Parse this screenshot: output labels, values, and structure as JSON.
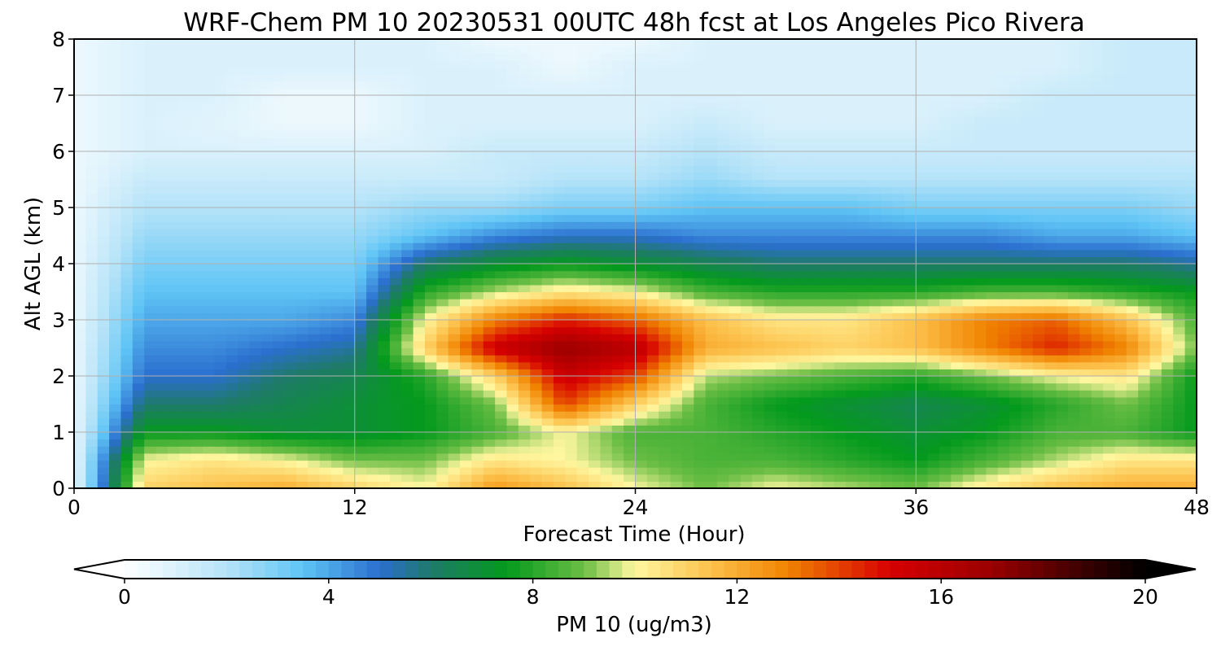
{
  "chart_data": {
    "type": "heatmap",
    "title": "WRF-Chem PM 10  20230531 00UTC 48h fcst at Los Angeles Pico Rivera",
    "xlabel": "Forecast Time (Hour)",
    "ylabel": "Alt AGL (km)",
    "xlim": [
      0,
      48
    ],
    "ylim": [
      0,
      8
    ],
    "xticks": [
      0,
      12,
      24,
      36,
      48
    ],
    "yticks": [
      0,
      1,
      2,
      3,
      4,
      5,
      6,
      7,
      8
    ],
    "grid": true,
    "hours": [
      0,
      3,
      6,
      9,
      12,
      15,
      18,
      21,
      24,
      27,
      30,
      33,
      36,
      39,
      42,
      45,
      48
    ],
    "altitudes_km": [
      0,
      0.5,
      1,
      1.5,
      2,
      2.5,
      3,
      3.5,
      4,
      4.5,
      5,
      5.5,
      6,
      6.5,
      7,
      7.5,
      8
    ],
    "pm10_values": [
      [
        0.5,
        11,
        11.5,
        12,
        11,
        10,
        12.5,
        11.5,
        10,
        9,
        10,
        9.5,
        9,
        10.5,
        11.5,
        12,
        12
      ],
      [
        0.5,
        10,
        10.5,
        10,
        9,
        9,
        10.5,
        10,
        9,
        8.5,
        8.5,
        8,
        7.5,
        8.5,
        9.5,
        10.5,
        10.5
      ],
      [
        0.5,
        7.5,
        7.5,
        7,
        7,
        7.5,
        8.5,
        10,
        8.5,
        8.5,
        8,
        7.5,
        7,
        7.5,
        8.5,
        8.5,
        7.5
      ],
      [
        0.5,
        6,
        6,
        6.5,
        7,
        7.5,
        9,
        14,
        11,
        8.5,
        7.5,
        7,
        6.5,
        7,
        8,
        9,
        7.5
      ],
      [
        0.5,
        5,
        5,
        6,
        6.5,
        8,
        11,
        15.5,
        14,
        9.5,
        9,
        8.5,
        8,
        9,
        10,
        10.5,
        7.5
      ],
      [
        0.5,
        4.5,
        4.5,
        5,
        5.5,
        11,
        15.5,
        17,
        16,
        12,
        11.5,
        11,
        11.5,
        13,
        14.5,
        13,
        9
      ],
      [
        0.5,
        4,
        4,
        4,
        4.5,
        10,
        13,
        14.5,
        13.5,
        11.5,
        10.5,
        10.5,
        11.5,
        13,
        13.5,
        11.5,
        8.5
      ],
      [
        0.5,
        3.5,
        3.5,
        3.5,
        3.5,
        8,
        9.5,
        10.5,
        10,
        8.5,
        8,
        8,
        8,
        8.5,
        8.5,
        8,
        7.5
      ],
      [
        0.5,
        3,
        3,
        3,
        3,
        6,
        7,
        7.5,
        7,
        6.5,
        6,
        6,
        6,
        6,
        6,
        6,
        5.5
      ],
      [
        0.5,
        2.5,
        2.5,
        2.5,
        2.5,
        3.5,
        4.5,
        5,
        5,
        4.5,
        4.5,
        4.5,
        4.5,
        4.5,
        4,
        4,
        3.5
      ],
      [
        0.5,
        2,
        2,
        2,
        2,
        2.5,
        2.5,
        3,
        3,
        3.5,
        3.5,
        3.5,
        3,
        3,
        3,
        3,
        2.5
      ],
      [
        0.5,
        1.5,
        1.5,
        1.5,
        1.5,
        1.5,
        1.5,
        2,
        2,
        2.5,
        2,
        2,
        2,
        2,
        2,
        2,
        2
      ],
      [
        0.5,
        1,
        1,
        1,
        1,
        1,
        1.5,
        1.5,
        1.5,
        2,
        1.5,
        1.5,
        1.5,
        1.5,
        1.5,
        1.5,
        1.5
      ],
      [
        0.5,
        1,
        0.8,
        0.5,
        0.5,
        1,
        1,
        1,
        1,
        1.5,
        1,
        1,
        1,
        1.5,
        1.5,
        1.5,
        1.5
      ],
      [
        0.5,
        1,
        1,
        0.5,
        0.5,
        1,
        1,
        1,
        1,
        1,
        1,
        1,
        1,
        1,
        1.5,
        1.5,
        1.5
      ],
      [
        0.5,
        1,
        1,
        1,
        1,
        1,
        1,
        0.5,
        1,
        1,
        1,
        1,
        1,
        1,
        1,
        1.5,
        1.5
      ],
      [
        0.5,
        1,
        1,
        1,
        1,
        1,
        0.5,
        0.5,
        0.5,
        1,
        1,
        1,
        1,
        1,
        1,
        1.5,
        1.5
      ]
    ],
    "colorbar": {
      "label": "PM 10  (ug/m3)",
      "ticks": [
        0,
        4,
        8,
        12,
        16,
        20
      ],
      "range": [
        0,
        20
      ],
      "orientation": "horizontal",
      "extend": "both",
      "color_stops": [
        {
          "v": 0,
          "c": "#ffffff"
        },
        {
          "v": 2,
          "c": "#b5e3f8"
        },
        {
          "v": 3.5,
          "c": "#5ec4f5"
        },
        {
          "v": 5,
          "c": "#2b6fcf"
        },
        {
          "v": 6,
          "c": "#1f7a6a"
        },
        {
          "v": 7.5,
          "c": "#049a1d"
        },
        {
          "v": 9,
          "c": "#6cbe45"
        },
        {
          "v": 10,
          "c": "#fff7a0"
        },
        {
          "v": 11.5,
          "c": "#fcc04a"
        },
        {
          "v": 13,
          "c": "#f08300"
        },
        {
          "v": 15,
          "c": "#d70000"
        },
        {
          "v": 17,
          "c": "#9a0000"
        },
        {
          "v": 19,
          "c": "#300000"
        },
        {
          "v": 20,
          "c": "#000000"
        }
      ]
    }
  }
}
